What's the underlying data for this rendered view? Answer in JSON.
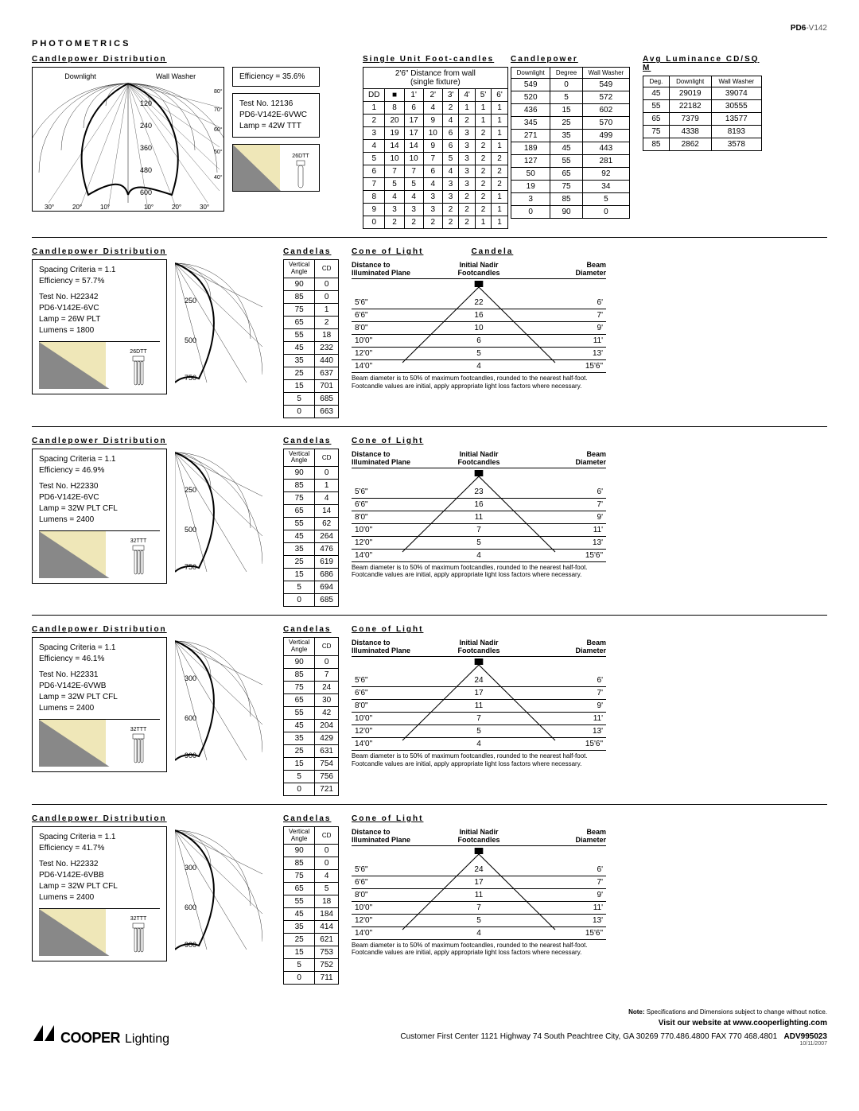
{
  "doc": {
    "id_prefix": "PD6",
    "id_suffix": "-V142"
  },
  "section_title": "PHOTOMETRICS",
  "top": {
    "cp_dist_title": "Candlepower Distribution",
    "footcandles_title": "Single Unit Foot-candles",
    "candlepower_title": "Candlepower",
    "luminance_title": "Avg Luminance CD/SQ M",
    "polar_left_label": "Downlight",
    "polar_right_label": "Wall Washer",
    "polar_y_ticks": [
      "120",
      "240",
      "360",
      "480",
      "600"
    ],
    "polar_left_angles": [
      "30°",
      "20°",
      "10°"
    ],
    "polar_right_angles": [
      "10°",
      "20°",
      "30°"
    ],
    "polar_arc_angles": [
      "80°",
      "70°",
      "60°",
      "50°",
      "40°"
    ],
    "efficiency": "Efficiency = 35.6%",
    "test_info": [
      "Test No. 12136",
      "PD6-V142E-6VWC",
      "Lamp = 42W TTT"
    ],
    "lamp_label": "26DTT",
    "fc_header1": "2'6\" Distance from wall",
    "fc_header2": "(single fixture)",
    "fc_rowlabel": "DD",
    "fc_cols": [
      "■",
      "1'",
      "2'",
      "3'",
      "4'",
      "5'",
      "6'"
    ],
    "fc_rows": [
      [
        "1",
        "8",
        "6",
        "4",
        "2",
        "1",
        "1",
        "1"
      ],
      [
        "2",
        "20",
        "17",
        "9",
        "4",
        "2",
        "1",
        "1"
      ],
      [
        "3",
        "19",
        "17",
        "10",
        "6",
        "3",
        "2",
        "1"
      ],
      [
        "4",
        "14",
        "14",
        "9",
        "6",
        "3",
        "2",
        "1"
      ],
      [
        "5",
        "10",
        "10",
        "7",
        "5",
        "3",
        "2",
        "2"
      ],
      [
        "6",
        "7",
        "7",
        "6",
        "4",
        "3",
        "2",
        "2"
      ],
      [
        "7",
        "5",
        "5",
        "4",
        "3",
        "3",
        "2",
        "2"
      ],
      [
        "8",
        "4",
        "4",
        "3",
        "3",
        "2",
        "2",
        "1"
      ],
      [
        "9",
        "3",
        "3",
        "3",
        "2",
        "2",
        "2",
        "1"
      ],
      [
        "0",
        "2",
        "2",
        "2",
        "2",
        "2",
        "1",
        "1"
      ]
    ],
    "cp_cols": [
      "Downlight",
      "Degree",
      "Wall Washer"
    ],
    "cp_rows": [
      [
        "549",
        "0",
        "549"
      ],
      [
        "520",
        "5",
        "572"
      ],
      [
        "436",
        "15",
        "602"
      ],
      [
        "345",
        "25",
        "570"
      ],
      [
        "271",
        "35",
        "499"
      ],
      [
        "189",
        "45",
        "443"
      ],
      [
        "127",
        "55",
        "281"
      ],
      [
        "50",
        "65",
        "92"
      ],
      [
        "19",
        "75",
        "34"
      ],
      [
        "3",
        "85",
        "5"
      ],
      [
        "0",
        "90",
        "0"
      ]
    ],
    "lum_cols": [
      "Deg.",
      "Downlight",
      "Wall Washer"
    ],
    "lum_rows": [
      [
        "45",
        "29019",
        "39074"
      ],
      [
        "55",
        "22182",
        "30555"
      ],
      [
        "65",
        "7379",
        "13577"
      ],
      [
        "75",
        "4338",
        "8193"
      ],
      [
        "85",
        "2862",
        "3578"
      ]
    ]
  },
  "blocks": [
    {
      "cp_title": "Candlepower Distribution",
      "candelas_title": "Candelas",
      "info": [
        "Spacing Criteria = 1.1",
        "Efficiency = 57.7%",
        "",
        "Test No. H22342",
        "PD6-V142E-6VC",
        "Lamp = 26W PLT",
        "Lumens = 1800"
      ],
      "lamp_label": "26DTT",
      "y_ticks": [
        "250",
        "500",
        "750"
      ],
      "candelas_cols": [
        "Vertical Angle",
        "CD"
      ],
      "candelas": [
        [
          "90",
          "0"
        ],
        [
          "85",
          "0"
        ],
        [
          "75",
          "1"
        ],
        [
          "65",
          "2"
        ],
        [
          "55",
          "18"
        ],
        [
          "45",
          "232"
        ],
        [
          "35",
          "440"
        ],
        [
          "25",
          "637"
        ],
        [
          "15",
          "701"
        ],
        [
          "5",
          "685"
        ],
        [
          "0",
          "663"
        ]
      ],
      "cone_title": "Cone of Light",
      "candela_title": "Candela",
      "cone_cols": [
        "Distance to Illuminated Plane",
        "Initial Nadir Footcandles",
        "Beam Diameter"
      ],
      "cone_rows": [
        [
          "5'6\"",
          "22",
          "6'"
        ],
        [
          "6'6\"",
          "16",
          "7'"
        ],
        [
          "8'0\"",
          "10",
          "9'"
        ],
        [
          "10'0\"",
          "6",
          "11'"
        ],
        [
          "12'0\"",
          "5",
          "13'"
        ],
        [
          "14'0\"",
          "4",
          "15'6\""
        ]
      ],
      "note": "Beam diameter is to 50% of maximum footcandles, rounded to the nearest half-foot. Footcandle values are initial, apply appropriate light loss factors where necessary."
    },
    {
      "cp_title": "Candlepower Distribution",
      "candelas_title": "Candelas",
      "info": [
        "Spacing Criteria = 1.1",
        "Efficiency = 46.9%",
        "",
        "Test No. H22330",
        "PD6-V142E-6VC",
        "Lamp = 32W PLT CFL",
        "Lumens = 2400"
      ],
      "lamp_label": "32TTT",
      "y_ticks": [
        "250",
        "500",
        "750"
      ],
      "candelas_cols": [
        "Vertical Angle",
        "CD"
      ],
      "candelas": [
        [
          "90",
          "0"
        ],
        [
          "85",
          "1"
        ],
        [
          "75",
          "4"
        ],
        [
          "65",
          "14"
        ],
        [
          "55",
          "62"
        ],
        [
          "45",
          "264"
        ],
        [
          "35",
          "476"
        ],
        [
          "25",
          "619"
        ],
        [
          "15",
          "686"
        ],
        [
          "5",
          "694"
        ],
        [
          "0",
          "685"
        ]
      ],
      "cone_title": "Cone of Light",
      "candela_title": "",
      "cone_cols": [
        "Distance to Illuminated Plane",
        "Initial Nadir Footcandles",
        "Beam Diameter"
      ],
      "cone_rows": [
        [
          "5'6\"",
          "23",
          "6'"
        ],
        [
          "6'6\"",
          "16",
          "7'"
        ],
        [
          "8'0\"",
          "11",
          "9'"
        ],
        [
          "10'0\"",
          "7",
          "11'"
        ],
        [
          "12'0\"",
          "5",
          "13'"
        ],
        [
          "14'0\"",
          "4",
          "15'6\""
        ]
      ],
      "note": "Beam diameter is to 50% of maximum footcandles, rounded to the nearest half-foot. Footcandle values are initial, apply appropriate light loss factors where necessary."
    },
    {
      "cp_title": "Candlepower Distribution",
      "candelas_title": "Candelas",
      "info": [
        "Spacing Criteria = 1.1",
        "Efficiency = 46.1%",
        "",
        "Test No. H22331",
        "PD6-V142E-6VWB",
        "Lamp = 32W PLT CFL",
        "Lumens = 2400"
      ],
      "lamp_label": "32TTT",
      "y_ticks": [
        "300",
        "600",
        "900"
      ],
      "candelas_cols": [
        "Vertical Angle",
        "CD"
      ],
      "candelas": [
        [
          "90",
          "0"
        ],
        [
          "85",
          "7"
        ],
        [
          "75",
          "24"
        ],
        [
          "65",
          "30"
        ],
        [
          "55",
          "42"
        ],
        [
          "45",
          "204"
        ],
        [
          "35",
          "429"
        ],
        [
          "25",
          "631"
        ],
        [
          "15",
          "754"
        ],
        [
          "5",
          "756"
        ],
        [
          "0",
          "721"
        ]
      ],
      "cone_title": "Cone of Light",
      "candela_title": "",
      "cone_cols": [
        "Distance to Illuminated Plane",
        "Initial Nadir Footcandles",
        "Beam Diameter"
      ],
      "cone_rows": [
        [
          "5'6\"",
          "24",
          "6'"
        ],
        [
          "6'6\"",
          "17",
          "7'"
        ],
        [
          "8'0\"",
          "11",
          "9'"
        ],
        [
          "10'0\"",
          "7",
          "11'"
        ],
        [
          "12'0\"",
          "5",
          "13'"
        ],
        [
          "14'0\"",
          "4",
          "15'6\""
        ]
      ],
      "note": "Beam diameter is to 50% of maximum footcandles, rounded to the nearest half-foot. Footcandle values are initial, apply appropriate light loss factors where necessary."
    },
    {
      "cp_title": "Candlepower Distribution",
      "candelas_title": "Candelas",
      "info": [
        "Spacing Criteria = 1.1",
        "Efficiency = 41.7%",
        "",
        "Test No. H22332",
        "PD6-V142E-6VBB",
        "Lamp = 32W PLT CFL",
        "Lumens = 2400"
      ],
      "lamp_label": "32TTT",
      "y_ticks": [
        "300",
        "600",
        "900"
      ],
      "candelas_cols": [
        "Vertical Angle",
        "CD"
      ],
      "candelas": [
        [
          "90",
          "0"
        ],
        [
          "85",
          "0"
        ],
        [
          "75",
          "4"
        ],
        [
          "65",
          "5"
        ],
        [
          "55",
          "18"
        ],
        [
          "45",
          "184"
        ],
        [
          "35",
          "414"
        ],
        [
          "25",
          "621"
        ],
        [
          "15",
          "753"
        ],
        [
          "5",
          "752"
        ],
        [
          "0",
          "711"
        ]
      ],
      "cone_title": "Cone of Light",
      "candela_title": "",
      "cone_cols": [
        "Distance to Illuminated Plane",
        "Initial Nadir Footcandles",
        "Beam Diameter"
      ],
      "cone_rows": [
        [
          "5'6\"",
          "24",
          "6'"
        ],
        [
          "6'6\"",
          "17",
          "7'"
        ],
        [
          "8'0\"",
          "11",
          "9'"
        ],
        [
          "10'0\"",
          "7",
          "11'"
        ],
        [
          "12'0\"",
          "5",
          "13'"
        ],
        [
          "14'0\"",
          "4",
          "15'6\""
        ]
      ],
      "note": "Beam diameter is to 50% of maximum footcandles, rounded to the nearest half-foot. Footcandle values are initial, apply appropriate light loss factors where necessary."
    }
  ],
  "footer": {
    "note": "Note: Specifications and Dimensions subject to change without notice.",
    "web": "Visit our website at www.cooperlighting.com",
    "addr": "Customer First Center  1121 Highway 74 South Peachtree City, GA 30269 770.486.4800 FAX 770 468.4801",
    "code": "ADV995023",
    "date": "10/11/2007",
    "logo_text": "COOPER",
    "logo_sub": "Lighting"
  }
}
